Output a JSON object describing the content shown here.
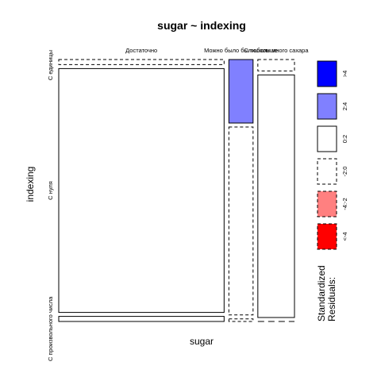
{
  "chart_data": {
    "type": "mosaic",
    "title": "sugar ~ indexing",
    "xlabel": "sugar",
    "ylabel": "indexing",
    "x_categories": [
      "Достаточно",
      "Можно было бы побольше",
      "Слишком много сахара"
    ],
    "y_categories": [
      "С единицы",
      "С нуля",
      "С произвольного числа"
    ],
    "x_proportions": [
      0.731,
      0.107,
      0.162
    ],
    "cells": [
      {
        "x": "Достаточно",
        "y": "С единицы",
        "proportion": 0.02,
        "residual_class": "-2:0"
      },
      {
        "x": "Достаточно",
        "y": "С нуля",
        "proportion": 0.96,
        "residual_class": "0:2"
      },
      {
        "x": "Достаточно",
        "y": "С произвольного числа",
        "proportion": 0.02,
        "residual_class": "0:2"
      },
      {
        "x": "Можно было бы побольше",
        "y": "С единицы",
        "proportion": 0.25,
        "residual_class": "2:4"
      },
      {
        "x": "Можно было бы побольше",
        "y": "С нуля",
        "proportion": 0.74,
        "residual_class": "-2:0"
      },
      {
        "x": "Можно было бы побольше",
        "y": "С произвольного числа",
        "proportion": 0.01,
        "residual_class": "-2:0"
      },
      {
        "x": "Слишком много сахара",
        "y": "С единицы",
        "proportion": 0.045,
        "residual_class": "-2:0"
      },
      {
        "x": "Слишком много сахара",
        "y": "С нуля",
        "proportion": 0.955,
        "residual_class": "0:2"
      },
      {
        "x": "Слишком много сахара",
        "y": "С произвольного числа",
        "proportion": 0.0,
        "residual_class": "-2:0"
      }
    ],
    "legend": {
      "title_lines": [
        "Standardized",
        "Residuals:"
      ],
      "placement": "right",
      "entries": [
        {
          "label": ">4",
          "color": "#0000ff",
          "dashed": false
        },
        {
          "label": "2:4",
          "color": "#8080ff",
          "dashed": false
        },
        {
          "label": "0:2",
          "color": "#ffffff",
          "dashed": false
        },
        {
          "label": "-2:0",
          "color": "#ffffff",
          "dashed": true
        },
        {
          "label": "-4:-2",
          "color": "#ff8080",
          "dashed": true
        },
        {
          "label": "<-4",
          "color": "#ff0000",
          "dashed": true
        }
      ]
    }
  }
}
